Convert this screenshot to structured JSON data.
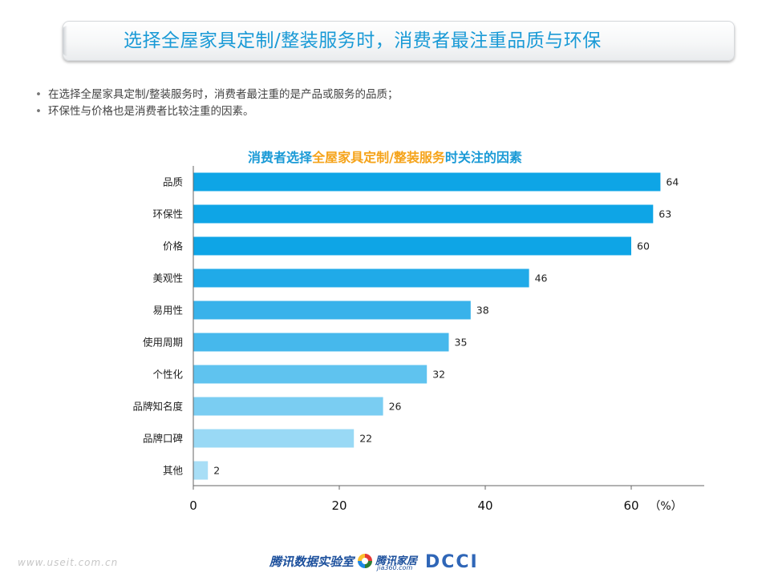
{
  "header": {
    "title": "选择全屋家具定制/整装服务时，消费者最注重品质与环保"
  },
  "bullets": [
    "在选择全屋家具定制/整装服务时，消费者最注重的是产品或服务的品质；",
    "环保性与价格也是消费者比较注重的因素。"
  ],
  "chart_title_parts": {
    "part1": "消费者选择",
    "part2": "全屋家具定制/整装服务",
    "part3": "时关注的因素"
  },
  "chart_data": {
    "type": "bar",
    "orientation": "horizontal",
    "title": "消费者选择全屋家具定制/整装服务时关注的因素",
    "categories": [
      "品质",
      "环保性",
      "价格",
      "美观性",
      "易用性",
      "使用周期",
      "个性化",
      "品牌知名度",
      "品牌口碑",
      "其他"
    ],
    "values": [
      64,
      63,
      60,
      46,
      38,
      35,
      32,
      26,
      22,
      2
    ],
    "x_ticks": [
      0,
      20,
      40,
      60
    ],
    "x_unit": "（%）",
    "xlim": [
      0,
      70
    ],
    "bar_colors": [
      "#0ea5e6",
      "#0ea5e6",
      "#0ea5e6",
      "#20aae8",
      "#38b2ea",
      "#46b8ec",
      "#5fc3ef",
      "#7acdf2",
      "#99d9f5",
      "#a8def6"
    ],
    "data_labels": true,
    "grid": false
  },
  "footer": {
    "url": "www.useit.com.cn",
    "brand1": "腾讯数据实验室",
    "brand2_name": "腾讯家居",
    "brand2_sub": "jia360.com",
    "brand3": "DCCI"
  }
}
